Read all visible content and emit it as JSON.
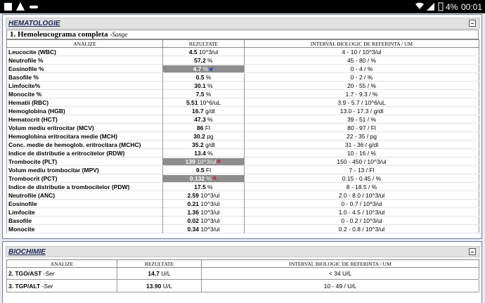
{
  "status_bar": {
    "battery": "4%",
    "time": "00:01"
  },
  "sections": [
    {
      "title": "HEMATOLOGIE",
      "test": {
        "title": "1. Hemoleucograma completa",
        "sample": "-Sange"
      },
      "columns": [
        "ANALIZE",
        "REZULTATE",
        "INTERVAL BIOLOGIC DE REFERINTA / UM"
      ],
      "rows": [
        {
          "name": "Leucocite (WBC)",
          "value": "4.5",
          "unit": "10^3/ul",
          "range": "4 - 10 / 10^3/ul"
        },
        {
          "name": "Neutrofile %",
          "value": "57.2",
          "unit": "%",
          "range": "45 - 80 / %"
        },
        {
          "name": "Eosinofile %",
          "value": "4.7",
          "unit": "%",
          "range": "0 - 4 / %",
          "flag": "up"
        },
        {
          "name": "Basofile %",
          "value": "0.5",
          "unit": "%",
          "range": "0 - 2 / %"
        },
        {
          "name": "Limfocite%",
          "value": "30.1",
          "unit": "%",
          "range": "20 - 55 / %"
        },
        {
          "name": "Monocite %",
          "value": "7.5",
          "unit": "%",
          "range": "1.7 - 9.3 / %"
        },
        {
          "name": "Hematii (RBC)",
          "value": "5.51",
          "unit": "10^6/uL",
          "range": "3.9 - 5.7 / 10^6/uL"
        },
        {
          "name": "Hemoglobina (HGB)",
          "value": "16.7",
          "unit": "g/dl",
          "range": "13.0 - 17.3 / g/dl"
        },
        {
          "name": "Hematocrit (HCT)",
          "value": "47.3",
          "unit": "%",
          "range": "39 - 51 / %"
        },
        {
          "name": "Volum mediu eritrocitar (MCV)",
          "value": "86",
          "unit": "Fl",
          "range": "80 - 97 / Fl"
        },
        {
          "name": "Hemoglobina eritrocitara medie (MCH)",
          "value": "30.2",
          "unit": "pg",
          "range": "22 - 35 / pg"
        },
        {
          "name": "Conc. medie de hemoglob. eritrocitara (MCHC)",
          "value": "35.2",
          "unit": "g/dl",
          "range": "31 - 36 / g/dl"
        },
        {
          "name": "Indice de distributie a eritrocitelor (RDW)",
          "value": "13.4",
          "unit": "%",
          "range": "10 - 16 / %"
        },
        {
          "name": "Trombocite (PLT)",
          "value": "139",
          "unit": "10^3/ul",
          "range": "150 - 450 / 10^3/ul",
          "flag": "down"
        },
        {
          "name": "Volum mediu trombocitar (MPV)",
          "value": "9.5",
          "unit": "Fl",
          "range": "7 - 13 / Fl"
        },
        {
          "name": "Trombocrit (PCT)",
          "value": "0.132",
          "unit": "%",
          "range": "0.15 - 0.45 / %",
          "flag": "down"
        },
        {
          "name": "Indice de distributie a trombocitelor (PDW)",
          "value": "17.5",
          "unit": "%",
          "range": "8 - 18.5 / %"
        },
        {
          "name": "Neutrofile (ANC)",
          "value": "2.59",
          "unit": "10^3/ul",
          "range": "2.0 - 8.0 / 10^3/ul"
        },
        {
          "name": "Eosinofile",
          "value": "0.21",
          "unit": "10^3/ul",
          "range": "0 - 0.7 / 10^3/ul"
        },
        {
          "name": "Limfocite",
          "value": "1.36",
          "unit": "10^3/ul",
          "range": "1.0 - 4.5 / 10^3/ul"
        },
        {
          "name": "Basofile",
          "value": "0.02",
          "unit": "10^3/ul",
          "range": "0 - 0.2 / 10^3/ul"
        },
        {
          "name": "Monocite",
          "value": "0.34",
          "unit": "10^3/ul",
          "range": "0.2 - 0.8 / 10^3/ul"
        }
      ]
    },
    {
      "title": "BIOCHIMIE",
      "columns": [
        "ANALIZE",
        "REZULTATE",
        "INTERVAL BIOLOGIC DE REFERINTA / UM"
      ],
      "rows": [
        {
          "name": "2. TGO/AST",
          "sample": "-Ser",
          "value": "14.7",
          "unit": "U/L",
          "range": "< 34 U/L"
        },
        {
          "name": "3. TGP/ALT",
          "sample": "-Ser",
          "value": "13.90",
          "unit": "U/L",
          "range": "10 - 49 / U/L"
        }
      ]
    }
  ]
}
